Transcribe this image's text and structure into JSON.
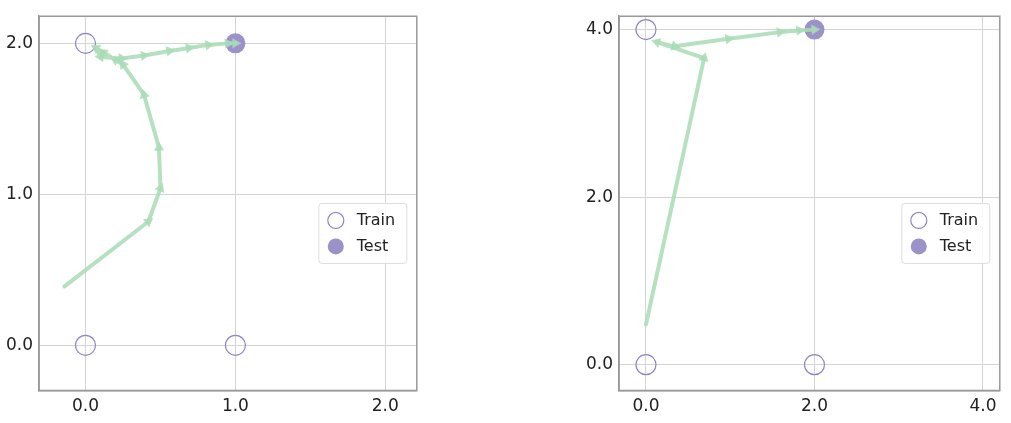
{
  "chart_data": [
    {
      "type": "scatter",
      "xlim": [
        -0.31,
        2.21
      ],
      "ylim": [
        -0.3,
        2.18
      ],
      "xticks": [
        {
          "value": 0,
          "label": "0.0"
        },
        {
          "value": 1,
          "label": "1.0"
        },
        {
          "value": 2,
          "label": "2.0"
        }
      ],
      "yticks": [
        {
          "value": 0,
          "label": "0.0"
        },
        {
          "value": 1,
          "label": "1.0"
        },
        {
          "value": 2,
          "label": "2.0"
        }
      ],
      "grid": true,
      "legend": "right",
      "series": [
        {
          "type": "line",
          "color": "#a8dcb6",
          "marker": "triangle",
          "x": [
            -0.14,
            0.42,
            0.5,
            0.49,
            0.39,
            0.25,
            0.2,
            0.12,
            0.07,
            0.1,
            0.24,
            0.39,
            0.56,
            0.69,
            0.82,
            0.95,
            1.0
          ],
          "values": [
            0.39,
            0.82,
            1.04,
            1.31,
            1.66,
            1.86,
            1.89,
            1.94,
            1.97,
            1.91,
            1.9,
            1.92,
            1.95,
            1.97,
            1.99,
            2.0,
            2.0
          ]
        },
        {
          "name": "Train",
          "type": "scatter",
          "color": "#8f85c8",
          "marker": "circle",
          "x": [
            0,
            0,
            1
          ],
          "values": [
            2,
            0,
            0
          ]
        },
        {
          "name": "Test",
          "type": "scatter",
          "color": "#9a92c8",
          "marker": "circle",
          "x": [
            1
          ],
          "values": [
            2
          ]
        }
      ]
    },
    {
      "type": "scatter",
      "xlim": [
        -0.32,
        4.2
      ],
      "ylim": [
        -0.31,
        4.16
      ],
      "xticks": [
        {
          "value": 0,
          "label": "0.0"
        },
        {
          "value": 2,
          "label": "2.0"
        },
        {
          "value": 4,
          "label": "4.0"
        }
      ],
      "yticks": [
        {
          "value": 0,
          "label": "0.0"
        },
        {
          "value": 2,
          "label": "2.0"
        },
        {
          "value": 4,
          "label": "4.0"
        }
      ],
      "grid": true,
      "legend": "right",
      "series": [
        {
          "type": "line",
          "color": "#a8dcb6",
          "marker": "triangle",
          "x": [
            0,
            0.69,
            0.13,
            0.34,
            0.98,
            1.59,
            1.82,
            2.0
          ],
          "values": [
            0.48,
            3.66,
            3.85,
            3.8,
            3.89,
            3.97,
            3.99,
            4.0
          ]
        },
        {
          "name": "Train",
          "type": "scatter",
          "color": "#8f85c8",
          "marker": "circle",
          "x": [
            0,
            0,
            2
          ],
          "values": [
            4,
            0,
            0
          ]
        },
        {
          "name": "Test",
          "type": "scatter",
          "color": "#9a92c8",
          "marker": "circle",
          "x": [
            2
          ],
          "values": [
            4
          ]
        }
      ]
    }
  ]
}
